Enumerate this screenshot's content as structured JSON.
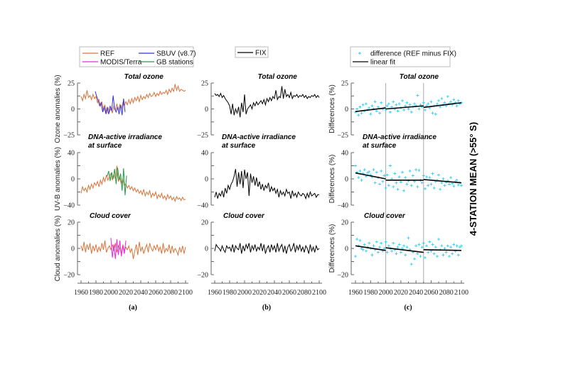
{
  "side_label": "4-STATION MEAN (>55° S)",
  "panel_labels": [
    "(a)",
    "(b)",
    "(c)"
  ],
  "legends": {
    "a": [
      {
        "label": "REF",
        "color": "#d9733a",
        "marker": "line"
      },
      {
        "label": "SBUV (v8.7)",
        "color": "#3333dd",
        "marker": "line"
      },
      {
        "label": "MODIS/Terra",
        "color": "#ee22ee",
        "marker": "line"
      },
      {
        "label": "GB stations",
        "color": "#229944",
        "marker": "line"
      }
    ],
    "b": [
      {
        "label": "FIX",
        "color": "#000000",
        "marker": "line"
      }
    ],
    "c": [
      {
        "label": "difference (REF minus FIX)",
        "color": "#33ccee",
        "marker": "plus"
      },
      {
        "label": "linear fit",
        "color": "#000000",
        "marker": "line"
      }
    ]
  },
  "x_axis": {
    "xlim": [
      1960,
      2100
    ],
    "tick_labels": [
      "1960",
      "1980",
      "2000",
      "2020",
      "2040",
      "2060",
      "2080",
      "2100"
    ],
    "tick_values": [
      1960,
      1980,
      2000,
      2020,
      2040,
      2060,
      2080,
      2100
    ]
  },
  "vertical_reference_lines_c": [
    2000,
    2050
  ],
  "chart_data": [
    {
      "id": "a-ozone",
      "type": "line",
      "col": "a",
      "row": 0,
      "title": [
        "Total ozone"
      ],
      "ylabel": "Ozone anomalies (%)",
      "ylim": [
        -25,
        25
      ],
      "yticks": [
        25,
        0,
        -25
      ],
      "ytick_labels": [
        "25",
        "0",
        "−25"
      ],
      "series": [
        {
          "name": "REF",
          "color": "#d9733a",
          "x_start": 1960,
          "x_step": 2,
          "values": [
            12,
            8,
            14,
            10,
            18,
            11,
            13,
            9,
            14,
            10,
            12,
            6,
            9,
            3,
            7,
            -2,
            4,
            -5,
            2,
            -3,
            1,
            -4,
            3,
            -1,
            5,
            -2,
            4,
            0,
            6,
            3,
            7,
            4,
            9,
            5,
            10,
            6,
            11,
            8,
            12,
            7,
            13,
            9,
            12,
            10,
            14,
            11,
            15,
            12,
            13,
            16,
            12,
            15,
            13,
            17,
            14,
            16,
            15,
            18,
            14,
            19,
            16,
            20,
            17,
            24,
            18,
            22,
            17,
            19,
            18,
            17,
            18
          ]
        },
        {
          "name": "SBUV (v8.7)",
          "color": "#3333dd",
          "x_start": 1979,
          "x_step": 2,
          "values": [
            17,
            12,
            8,
            3,
            6,
            -3,
            2,
            -4,
            1,
            -5,
            3,
            -2,
            13,
            0,
            -3,
            2,
            -5,
            4,
            -6,
            10,
            -3
          ]
        }
      ]
    },
    {
      "id": "a-uv",
      "type": "line",
      "col": "a",
      "row": 1,
      "title": [
        "DNA-active irradiance",
        "at surface"
      ],
      "ylabel": "UV-B anomalies (%)",
      "ylim": [
        -40,
        40
      ],
      "yticks": [
        40,
        0,
        -40
      ],
      "ytick_labels": [
        "40",
        "0",
        "−40"
      ],
      "series": [
        {
          "name": "REF",
          "color": "#d9733a",
          "x_start": 1960,
          "x_step": 2,
          "values": [
            -22,
            -12,
            -18,
            -14,
            -20,
            -10,
            -16,
            -8,
            -14,
            -6,
            -10,
            -4,
            -12,
            -2,
            -8,
            2,
            -4,
            6,
            -2,
            4,
            8,
            -2,
            6,
            0,
            20,
            -4,
            2,
            -8,
            0,
            -10,
            -8,
            -14,
            -10,
            -16,
            -12,
            -18,
            -14,
            -20,
            -16,
            -22,
            -18,
            -24,
            -16,
            -26,
            -20,
            -24,
            -18,
            -28,
            -22,
            -26,
            -20,
            -30,
            -24,
            -28,
            -22,
            -30,
            -26,
            -32,
            -24,
            -30,
            -26,
            -32,
            -28,
            -34,
            -27,
            -31,
            -29,
            -33,
            -28,
            -32,
            -31
          ]
        },
        {
          "name": "GB stations",
          "color": "#229944",
          "x_start": 1995,
          "x_step": 2,
          "values": [
            4,
            12,
            -3,
            10,
            0,
            15,
            -8,
            17,
            -2,
            8,
            -18,
            16,
            -25,
            5
          ]
        }
      ]
    },
    {
      "id": "a-cloud",
      "type": "line",
      "col": "a",
      "row": 2,
      "title": [
        "Cloud cover"
      ],
      "ylabel": "Cloud anomalies (%)",
      "ylim": [
        -20,
        20
      ],
      "yticks": [
        20,
        0,
        -20
      ],
      "ytick_labels": [
        "20",
        "0",
        "−20"
      ],
      "series": [
        {
          "name": "REF",
          "color": "#d9733a",
          "x_start": 1960,
          "x_step": 2,
          "values": [
            2,
            -2,
            5,
            -3,
            3,
            -1,
            4,
            -4,
            2,
            -2,
            3,
            -3,
            1,
            -2,
            4,
            -1,
            6,
            -3,
            0,
            2,
            -1,
            3,
            -2,
            4,
            -3,
            2,
            0,
            -4,
            3,
            -2,
            1,
            -1,
            2,
            -3,
            0,
            -8,
            -2,
            3,
            -5,
            5,
            -2,
            1,
            -4,
            0,
            3,
            -3,
            4,
            0,
            -2,
            2,
            -1,
            3,
            -2,
            1,
            -4,
            4,
            -3,
            0,
            -2,
            3,
            -4,
            2,
            -3,
            0,
            -2,
            -5,
            1,
            -3,
            2,
            -4,
            1
          ]
        },
        {
          "name": "MODIS/Terra",
          "color": "#ee22ee",
          "x_start": 2000,
          "x_step": 2,
          "values": [
            8,
            -7,
            3,
            -8,
            7,
            -5,
            6,
            -6,
            2,
            -4,
            6
          ]
        }
      ]
    },
    {
      "id": "b-ozone",
      "type": "line",
      "col": "b",
      "row": 0,
      "title": [
        "Total ozone"
      ],
      "ylabel": "",
      "ylim": [
        -25,
        25
      ],
      "yticks": [
        25,
        0,
        -25
      ],
      "ytick_labels": [
        "25",
        "0",
        "−25"
      ],
      "series": [
        {
          "name": "FIX",
          "color": "#000000",
          "x_start": 1960,
          "x_step": 2,
          "values": [
            15,
            13,
            14,
            12,
            15,
            11,
            13,
            10,
            8,
            6,
            3,
            -5,
            5,
            -6,
            0,
            -4,
            2,
            -8,
            6,
            -3,
            14,
            -5,
            0,
            2,
            4,
            0,
            6,
            3,
            7,
            4,
            6,
            8,
            5,
            9,
            4,
            10,
            7,
            11,
            8,
            12,
            10,
            18,
            9,
            12,
            11,
            22,
            10,
            19,
            12,
            14,
            11,
            16,
            10,
            13,
            12,
            14,
            11,
            13,
            12,
            14,
            11,
            13,
            10,
            12,
            11,
            13,
            12,
            14,
            11,
            13,
            11
          ]
        }
      ]
    },
    {
      "id": "b-uv",
      "type": "line",
      "col": "b",
      "row": 1,
      "title": [
        "DNA-active irradiance",
        "at surface"
      ],
      "ylabel": "",
      "ylim": [
        -40,
        40
      ],
      "yticks": [
        40,
        0,
        -40
      ],
      "ytick_labels": [
        "40",
        "0",
        "−40"
      ],
      "series": [
        {
          "name": "FIX",
          "color": "#000000",
          "x_start": 1960,
          "x_step": 2,
          "values": [
            -28,
            -20,
            -30,
            -22,
            -26,
            -18,
            -28,
            -14,
            -22,
            -10,
            -16,
            -8,
            -4,
            4,
            15,
            -12,
            10,
            -8,
            12,
            -14,
            14,
            0,
            10,
            -26,
            8,
            -6,
            4,
            -10,
            2,
            -12,
            -4,
            -16,
            -8,
            -18,
            -10,
            -14,
            -6,
            -20,
            -12,
            -18,
            -14,
            -22,
            -16,
            -28,
            -18,
            -24,
            -20,
            -26,
            -16,
            -22,
            -20,
            -30,
            -18,
            -26,
            -22,
            -28,
            -20,
            -24,
            -26,
            -22,
            -24,
            -30,
            -22,
            -28,
            -20,
            -26,
            -24,
            -22,
            -28,
            -24,
            -24
          ]
        }
      ]
    },
    {
      "id": "b-cloud",
      "type": "line",
      "col": "b",
      "row": 2,
      "title": [
        "Cloud cover"
      ],
      "ylabel": "",
      "ylim": [
        -20,
        20
      ],
      "yticks": [
        20,
        0,
        -20
      ],
      "ytick_labels": [
        "20",
        "0",
        "−20"
      ],
      "series": [
        {
          "name": "FIX",
          "color": "#000000",
          "x_start": 1960,
          "x_step": 2,
          "values": [
            -2,
            3,
            1,
            0,
            -2,
            2,
            -1,
            -3,
            2,
            0,
            1,
            -2,
            3,
            -3,
            2,
            0,
            -1,
            4,
            -4,
            2,
            -2,
            3,
            0,
            4,
            -3,
            2,
            -1,
            3,
            -2,
            1,
            -1,
            4,
            -2,
            3,
            -4,
            0,
            2,
            -3,
            3,
            -1,
            2,
            -3,
            4,
            -2,
            1,
            3,
            -3,
            2,
            -4,
            1,
            3,
            -2,
            0,
            4,
            -3,
            2,
            -1,
            3,
            -2,
            1,
            -3,
            2,
            0,
            -4,
            3,
            -2,
            1,
            -3,
            2,
            -1,
            0
          ]
        }
      ]
    },
    {
      "id": "c-ozone",
      "type": "scatter",
      "col": "c",
      "row": 0,
      "title": [
        "Total ozone"
      ],
      "ylabel": "Differences (%)",
      "ylim": [
        -25,
        25
      ],
      "yticks": [
        25,
        0,
        -25
      ],
      "ytick_labels": [
        "25",
        "0",
        "−25"
      ],
      "series": [
        {
          "name": "difference (REF minus FIX)",
          "color": "#33ccee",
          "x_start": 1960,
          "x_step": 2,
          "values": [
            -3,
            0,
            -6,
            2,
            -4,
            4,
            -2,
            5,
            -1,
            1,
            -5,
            3,
            0,
            7,
            -2,
            2,
            -4,
            6,
            0,
            1,
            -1,
            3,
            5,
            -3,
            2,
            7,
            0,
            4,
            -2,
            5,
            1,
            8,
            -1,
            3,
            6,
            0,
            4,
            -3,
            2,
            5,
            3,
            13,
            0,
            4,
            2,
            6,
            -1,
            3,
            5,
            1,
            7,
            -4,
            3,
            -5,
            5,
            8,
            2,
            10,
            4,
            6,
            3,
            12,
            5,
            7,
            4,
            9,
            6,
            3,
            8,
            5,
            6
          ]
        }
      ],
      "linear_fit": [
        {
          "x": [
            1960,
            2000
          ],
          "y": [
            -2.5,
            1
          ]
        },
        {
          "x": [
            2000,
            2050
          ],
          "y": [
            0,
            3
          ]
        },
        {
          "x": [
            2050,
            2100
          ],
          "y": [
            1.5,
            6
          ]
        }
      ]
    },
    {
      "id": "c-uv",
      "type": "scatter",
      "col": "c",
      "row": 1,
      "title": [
        "DNA-active irradiance",
        " at surface"
      ],
      "ylabel": "Differences (%)",
      "ylim": [
        -40,
        40
      ],
      "yticks": [
        40,
        0,
        -40
      ],
      "ytick_labels": [
        "40",
        "0",
        "−40"
      ],
      "series": [
        {
          "name": "difference (REF minus FIX)",
          "color": "#33ccee",
          "x_start": 1960,
          "x_step": 2,
          "values": [
            20,
            10,
            2,
            12,
            -2,
            8,
            14,
            4,
            9,
            11,
            6,
            3,
            14,
            -6,
            10,
            2,
            -8,
            12,
            -4,
            5,
            -14,
            6,
            -10,
            20,
            0,
            -12,
            8,
            -6,
            -16,
            3,
            -5,
            10,
            -18,
            2,
            -8,
            -3,
            12,
            -10,
            5,
            -4,
            14,
            -12,
            13,
            -2,
            -6,
            5,
            -15,
            3,
            -10,
            2,
            -8,
            8,
            -14,
            -4,
            -2,
            6,
            -16,
            -6,
            0,
            -10,
            -5,
            -3,
            -8,
            2,
            -7,
            -11,
            -4,
            -2,
            -9,
            -6,
            -10
          ]
        }
      ],
      "linear_fit": [
        {
          "x": [
            1960,
            2000
          ],
          "y": [
            9,
            0
          ]
        },
        {
          "x": [
            2000,
            2050
          ],
          "y": [
            -2,
            -2
          ]
        },
        {
          "x": [
            2050,
            2100
          ],
          "y": [
            -1,
            -6
          ]
        }
      ]
    },
    {
      "id": "c-cloud",
      "type": "scatter",
      "col": "c",
      "row": 2,
      "title": [
        "Cloud cover"
      ],
      "ylabel": "Differences (%)",
      "ylim": [
        -20,
        20
      ],
      "yticks": [
        20,
        0,
        -20
      ],
      "ytick_labels": [
        "20",
        "0",
        "−20"
      ],
      "series": [
        {
          "name": "difference (REF minus FIX)",
          "color": "#33ccee",
          "x_start": 1960,
          "x_step": 2,
          "values": [
            -6,
            7,
            2,
            6,
            0,
            -1,
            3,
            -2,
            1,
            4,
            0,
            -5,
            2,
            -1,
            5,
            -3,
            1,
            4,
            -2,
            0,
            5,
            -3,
            2,
            0,
            -2,
            4,
            -1,
            -4,
            1,
            3,
            -3,
            0,
            2,
            -5,
            1,
            8,
            -1,
            -12,
            -3,
            -8,
            2,
            -4,
            3,
            -6,
            1,
            4,
            -7,
            2,
            -3,
            5,
            -2,
            3,
            -4,
            1,
            -6,
            7,
            -1,
            2,
            -5,
            0,
            -3,
            2,
            -6,
            1,
            -4,
            3,
            -2,
            2,
            -5,
            1,
            2
          ]
        }
      ],
      "linear_fit": [
        {
          "x": [
            1960,
            2000
          ],
          "y": [
            2,
            -1.5
          ]
        },
        {
          "x": [
            2000,
            2050
          ],
          "y": [
            0.5,
            -3
          ]
        },
        {
          "x": [
            2050,
            2100
          ],
          "y": [
            -1,
            -1.5
          ]
        }
      ]
    }
  ]
}
